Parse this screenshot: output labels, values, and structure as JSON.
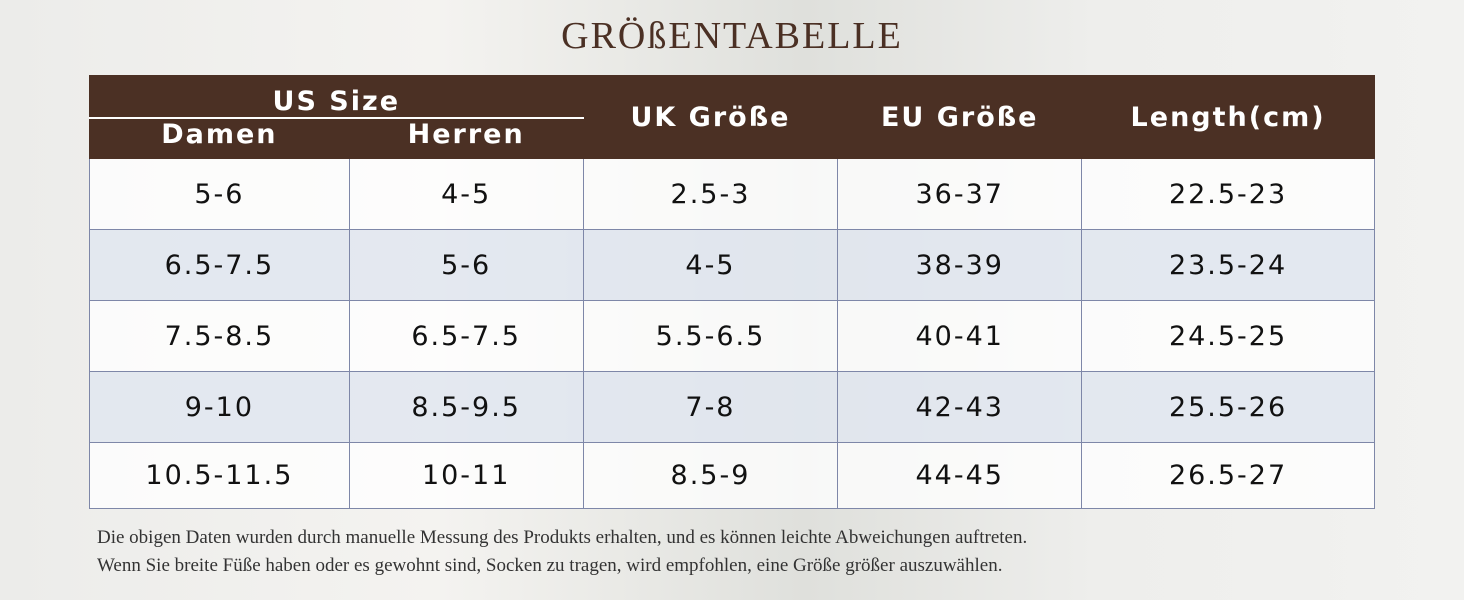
{
  "header": {
    "title": "GRÖßENTABELLE"
  },
  "table": {
    "group_header": "US Size",
    "columns": [
      "Damen",
      "Herren",
      "UK Größe",
      "EU Größe",
      "Length(cm)"
    ],
    "rows": [
      [
        "5-6",
        "4-5",
        "2.5-3",
        "36-37",
        "22.5-23"
      ],
      [
        "6.5-7.5",
        "5-6",
        "4-5",
        "38-39",
        "23.5-24"
      ],
      [
        "7.5-8.5",
        "6.5-7.5",
        "5.5-6.5",
        "40-41",
        "24.5-25"
      ],
      [
        "9-10",
        "8.5-9.5",
        "7-8",
        "42-43",
        "25.5-26"
      ],
      [
        "10.5-11.5",
        "10-11",
        "8.5-9",
        "44-45",
        "26.5-27"
      ]
    ]
  },
  "notes": [
    "Die obigen Daten wurden durch manuelle Messung des Produkts erhalten, und es können leichte Abweichungen auftreten.",
    "Wenn Sie breite Füße haben oder es gewohnt sind, Socken zu tragen, wird empfohlen, eine Größe größer auszuwählen."
  ]
}
